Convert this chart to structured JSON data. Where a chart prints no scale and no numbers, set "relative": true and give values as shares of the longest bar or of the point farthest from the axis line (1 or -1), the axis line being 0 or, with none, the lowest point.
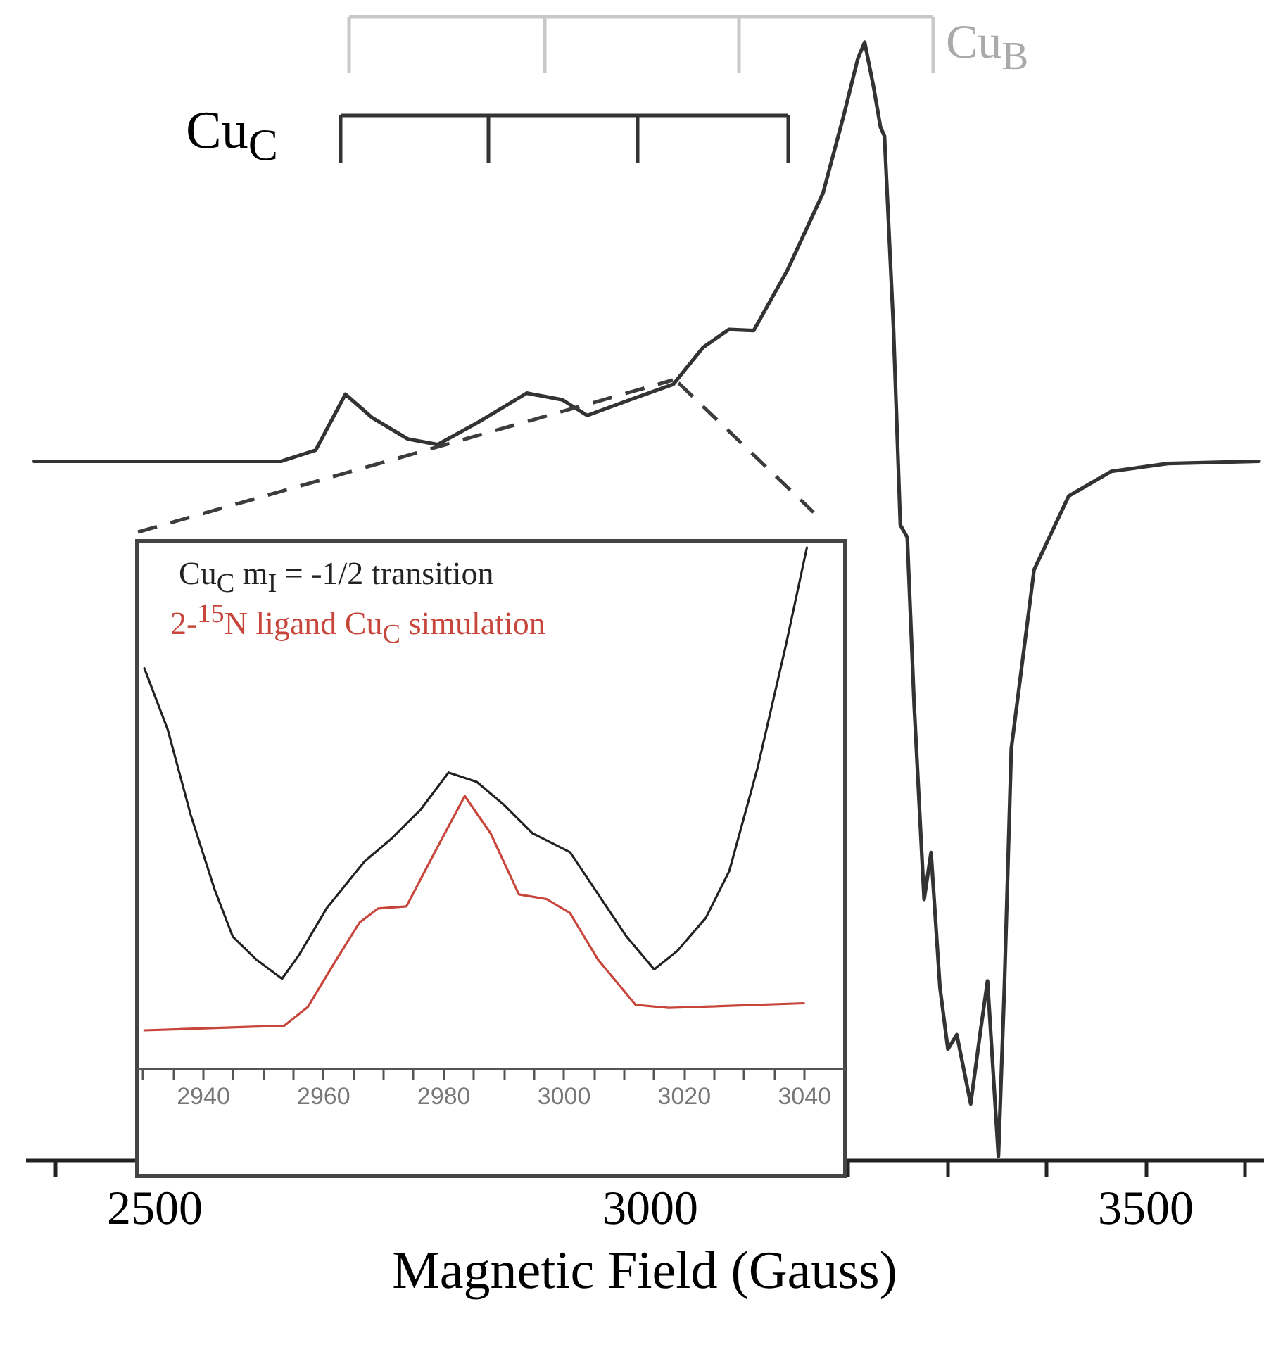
{
  "chart_data": [
    {
      "type": "line",
      "xlabel": "Magnetic Field (Gauss)",
      "relative": true,
      "xlim": [
        2370,
        3620
      ],
      "xticks": [
        {
          "value": 2400,
          "label": null
        },
        2500,
        {
          "value": 2600,
          "label": null
        },
        {
          "value": 2700,
          "label": null
        },
        {
          "value": 2800,
          "label": null
        },
        {
          "value": 2900,
          "label": null
        },
        3000,
        {
          "value": 3100,
          "label": null
        },
        {
          "value": 3200,
          "label": null
        },
        {
          "value": 3300,
          "label": null
        },
        {
          "value": 3400,
          "label": null
        },
        3500,
        {
          "value": 3600,
          "label": null
        }
      ],
      "annotations": [
        "Cu$_{C}$",
        "Cu$_{B}$"
      ],
      "series": [
        {
          "color": "#333333",
          "x": [
            2379,
            2628,
            2663,
            2693,
            2720,
            2756,
            2786,
            2827,
            2876,
            2912,
            2937,
            2983,
            3024,
            3054,
            3080,
            3105,
            3139,
            3175,
            3196,
            3210,
            3217,
            3226,
            3233,
            3237,
            3246,
            3253,
            3260,
            3267,
            3277,
            3284,
            3293,
            3301,
            3310,
            3324,
            3334,
            3341,
            3352,
            3358,
            3365,
            3388,
            3423,
            3466,
            3523,
            3615
          ],
          "values": [
            0.625,
            0.625,
            0.635,
            0.685,
            0.664,
            0.645,
            0.64,
            0.66,
            0.686,
            0.68,
            0.666,
            0.681,
            0.694,
            0.727,
            0.743,
            0.742,
            0.796,
            0.865,
            0.935,
            0.985,
            1.0,
            0.96,
            0.924,
            0.916,
            0.746,
            0.568,
            0.557,
            0.406,
            0.233,
            0.275,
            0.154,
            0.099,
            0.112,
            0.05,
            0.116,
            0.16,
            0.003,
            0.154,
            0.368,
            0.528,
            0.594,
            0.616,
            0.623,
            0.625
          ]
        }
      ]
    },
    {
      "type": "line",
      "relative": true,
      "xlim": [
        2929,
        3047
      ],
      "legend": "top left",
      "xticks": [
        {
          "value": 2930,
          "label": null
        },
        {
          "value": 2935,
          "label": null
        },
        2940,
        {
          "value": 2945,
          "label": null
        },
        {
          "value": 2950,
          "label": null
        },
        {
          "value": 2955,
          "label": null
        },
        2960,
        {
          "value": 2965,
          "label": null
        },
        {
          "value": 2970,
          "label": null
        },
        {
          "value": 2975,
          "label": null
        },
        2980,
        {
          "value": 2985,
          "label": null
        },
        {
          "value": 2990,
          "label": null
        },
        {
          "value": 2995,
          "label": null
        },
        3000,
        {
          "value": 3005,
          "label": null
        },
        {
          "value": 3010,
          "label": null
        },
        {
          "value": 3015,
          "label": null
        },
        3020,
        {
          "value": 3025,
          "label": null
        },
        {
          "value": 3030,
          "label": null
        },
        {
          "value": 3035,
          "label": null
        },
        3040
      ],
      "series": [
        {
          "name": "Cu$_{C}$ m$_{I}$ = -1/2 transition",
          "color": "#222222",
          "x": [
            2930.3,
            2934.2,
            2938,
            2942,
            2945,
            2949,
            2953.2,
            2956,
            2960.6,
            2966.9,
            2971.5,
            2976.2,
            2980.9,
            2985.6,
            2990.2,
            2994.9,
            3001.1,
            3005.8,
            3010.5,
            3015.1,
            3019,
            3023.7,
            3027.6,
            3032.3,
            3037,
            3040.5
          ],
          "values": [
            0.768,
            0.65,
            0.487,
            0.343,
            0.253,
            0.208,
            0.172,
            0.217,
            0.307,
            0.397,
            0.442,
            0.496,
            0.568,
            0.55,
            0.505,
            0.451,
            0.415,
            0.334,
            0.253,
            0.19,
            0.226,
            0.289,
            0.379,
            0.577,
            0.812,
            1.0
          ]
        },
        {
          "name": "2-$^{15}$N ligand Cu$_{C}$ simulation",
          "color": "#c8453b",
          "x": [
            2930.3,
            2953.6,
            2957.5,
            2962.2,
            2966.1,
            2969.2,
            2973.9,
            2978.6,
            2983.6,
            2987.9,
            2992.6,
            2997.2,
            3001.1,
            3005.8,
            3012,
            3017.5,
            3040
          ],
          "values": [
            0.073,
            0.082,
            0.118,
            0.208,
            0.28,
            0.307,
            0.311,
            0.415,
            0.523,
            0.451,
            0.334,
            0.325,
            0.298,
            0.208,
            0.122,
            0.116,
            0.125
          ]
        }
      ]
    }
  ]
}
